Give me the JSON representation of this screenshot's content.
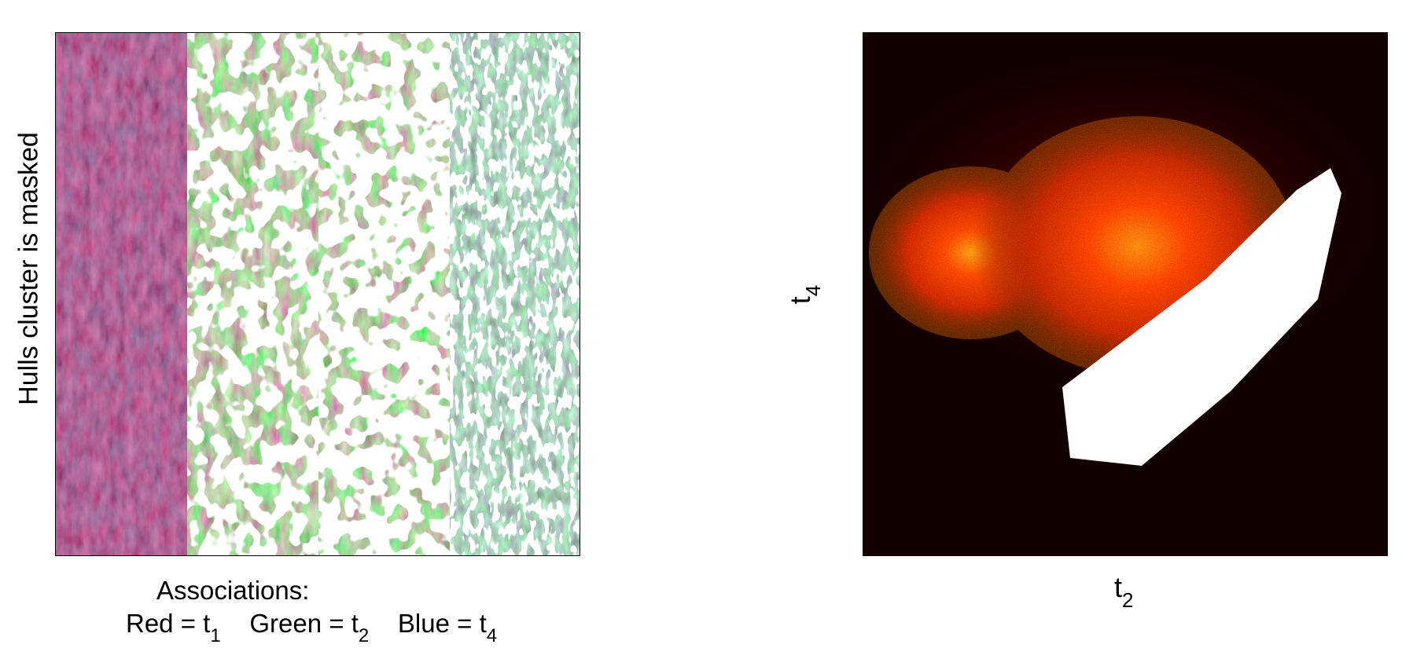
{
  "left_panel": {
    "ylabel": "Hulls cluster is masked",
    "caption_title": "Associations:",
    "legend": [
      {
        "name": "Red",
        "eq": " = ",
        "symbol": "t",
        "sub": "1"
      },
      {
        "name": "Green",
        "eq": " = ",
        "symbol": "t",
        "sub": "2"
      },
      {
        "name": "Blue",
        "eq": " = ",
        "symbol": "t",
        "sub": "4"
      }
    ],
    "strip_colors": [
      "#8a2a6a",
      "#3f9a45",
      "#ffffff"
    ],
    "mask_color": "#ffffff"
  },
  "right_panel": {
    "xlabel_symbol": "t",
    "xlabel_sub": "2",
    "ylabel_symbol": "t",
    "ylabel_sub": "4",
    "background_color": "#120000",
    "heat_colors": [
      "#3a0000",
      "#c00000",
      "#ff3000",
      "#ffb020"
    ],
    "mask_color": "#ffffff"
  }
}
